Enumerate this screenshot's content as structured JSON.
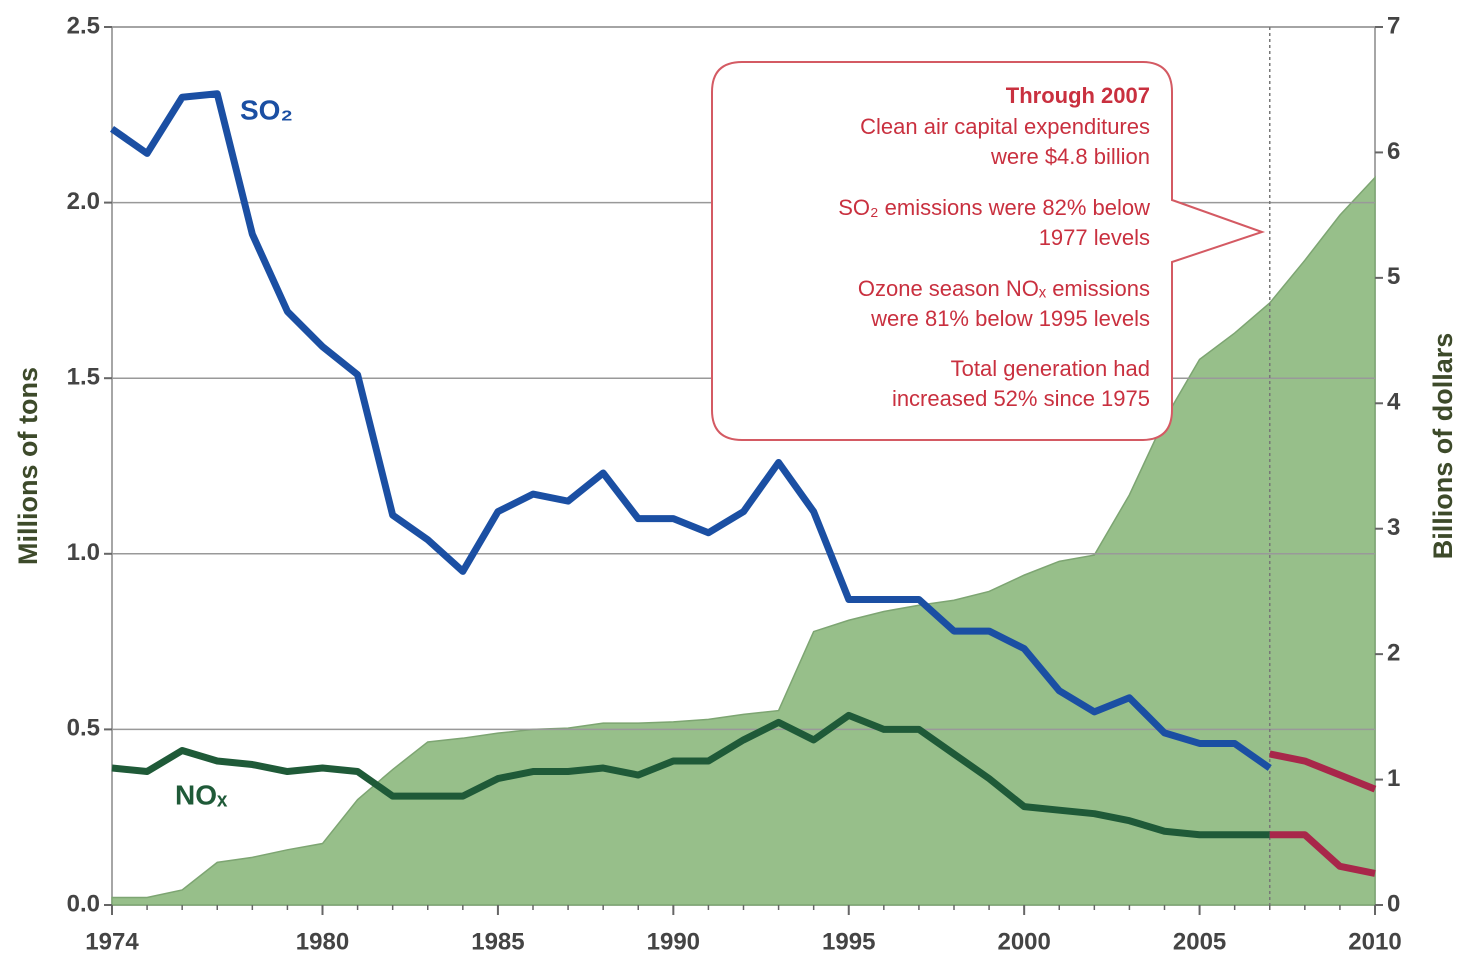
{
  "chart_data": {
    "type": "line",
    "y_label": "Millions of tons",
    "y2_label": "Billions of dollars",
    "x": [
      1974,
      1975,
      1976,
      1977,
      1978,
      1979,
      1980,
      1981,
      1982,
      1983,
      1984,
      1985,
      1986,
      1987,
      1988,
      1989,
      1990,
      1991,
      1992,
      1993,
      1994,
      1995,
      1996,
      1997,
      1998,
      1999,
      2000,
      2001,
      2002,
      2003,
      2004,
      2005,
      2006,
      2007,
      2008,
      2009,
      2010
    ],
    "xlim": [
      1974,
      2010
    ],
    "xticks": [
      1974,
      1980,
      1985,
      1990,
      1995,
      2000,
      2005,
      2010
    ],
    "ylim": [
      0,
      2.5
    ],
    "yticks": [
      {
        "value": 0,
        "label": "0.0"
      },
      0.5,
      {
        "value": 1,
        "label": "1.0"
      },
      1.5,
      {
        "value": 2,
        "label": "2.0"
      },
      2.5
    ],
    "y2lim": [
      0,
      7
    ],
    "y2ticks": [
      0,
      1,
      2,
      3,
      4,
      5,
      6,
      7
    ],
    "grid": true,
    "series": [
      {
        "type": "area",
        "axis": "y2",
        "color": "#97bf8a",
        "values": [
          0.06,
          0.06,
          0.12,
          0.34,
          0.38,
          0.44,
          0.49,
          0.84,
          1.08,
          1.3,
          1.33,
          1.37,
          1.4,
          1.41,
          1.45,
          1.45,
          1.46,
          1.48,
          1.52,
          1.55,
          2.18,
          2.27,
          2.34,
          2.39,
          2.43,
          2.5,
          2.63,
          2.74,
          2.79,
          3.27,
          3.87,
          4.35,
          4.56,
          4.8,
          5.14,
          5.5,
          5.8
        ]
      },
      {
        "name": "SO₂",
        "color": "#1b4fa3",
        "values": [
          2.21,
          2.14,
          2.3,
          2.31,
          1.91,
          1.69,
          1.59,
          1.51,
          1.11,
          1.04,
          0.95,
          1.12,
          1.17,
          1.15,
          1.23,
          1.1,
          1.1,
          1.06,
          1.12,
          1.26,
          1.12,
          0.87,
          0.87,
          0.87,
          0.78,
          0.78,
          0.73,
          0.61,
          0.55,
          0.59,
          0.49,
          0.46,
          0.46,
          0.39,
          null,
          null,
          null
        ]
      },
      {
        "color": "#a8274a",
        "values": [
          null,
          null,
          null,
          null,
          null,
          null,
          null,
          null,
          null,
          null,
          null,
          null,
          null,
          null,
          null,
          null,
          null,
          null,
          null,
          null,
          null,
          null,
          null,
          null,
          null,
          null,
          null,
          null,
          null,
          null,
          null,
          null,
          null,
          0.43,
          0.41,
          0.37,
          0.33
        ]
      },
      {
        "name": "NOₓ",
        "color": "#1f5a38",
        "values": [
          0.39,
          0.38,
          0.44,
          0.41,
          0.4,
          0.38,
          0.39,
          0.38,
          0.31,
          0.31,
          0.31,
          0.36,
          0.38,
          0.38,
          0.39,
          0.37,
          0.41,
          0.41,
          0.47,
          0.52,
          0.47,
          0.54,
          0.5,
          0.5,
          0.43,
          0.36,
          0.28,
          0.27,
          0.26,
          0.24,
          0.21,
          0.2,
          0.2,
          0.2,
          null,
          null,
          null
        ]
      },
      {
        "color": "#a8274a",
        "values": [
          null,
          null,
          null,
          null,
          null,
          null,
          null,
          null,
          null,
          null,
          null,
          null,
          null,
          null,
          null,
          null,
          null,
          null,
          null,
          null,
          null,
          null,
          null,
          null,
          null,
          null,
          null,
          null,
          null,
          null,
          null,
          null,
          null,
          0.2,
          0.2,
          0.11,
          0.09
        ]
      }
    ],
    "callout": [
      "Through 2007",
      "Clean air capital expenditures",
      "were $4.8 billion",
      "SO₂ emissions were 82% below",
      "1977 levels",
      "Ozone season NOₓ emissions",
      "were 81% below 1995 levels",
      "Total generation had",
      "increased 52% since 1975"
    ]
  }
}
